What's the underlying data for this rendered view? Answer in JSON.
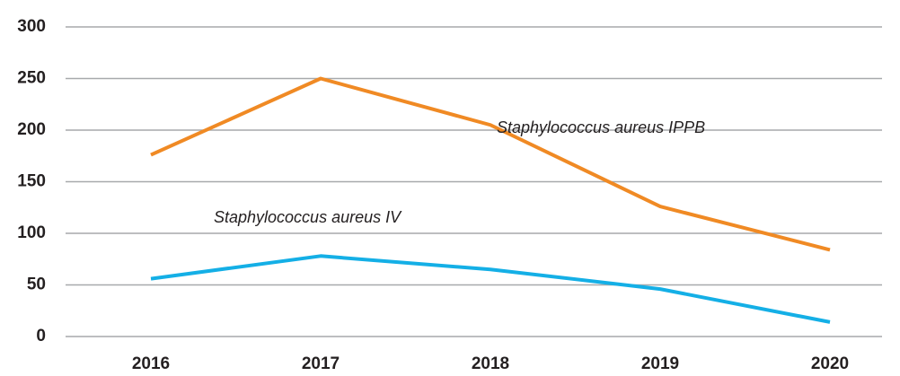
{
  "chart_data": {
    "type": "line",
    "categories": [
      "2016",
      "2017",
      "2018",
      "2019",
      "2020"
    ],
    "series": [
      {
        "name": "Staphylococcus aureus IPPB",
        "color": "#f08a24",
        "values": [
          176,
          250,
          205,
          126,
          84
        ]
      },
      {
        "name": "Staphylococcus aureus IV",
        "color": "#14afe6",
        "values": [
          56,
          78,
          65,
          46,
          14
        ]
      }
    ],
    "ylim": [
      0,
      300
    ],
    "yticks": [
      0,
      50,
      100,
      150,
      200,
      250,
      300
    ],
    "grid": true
  }
}
